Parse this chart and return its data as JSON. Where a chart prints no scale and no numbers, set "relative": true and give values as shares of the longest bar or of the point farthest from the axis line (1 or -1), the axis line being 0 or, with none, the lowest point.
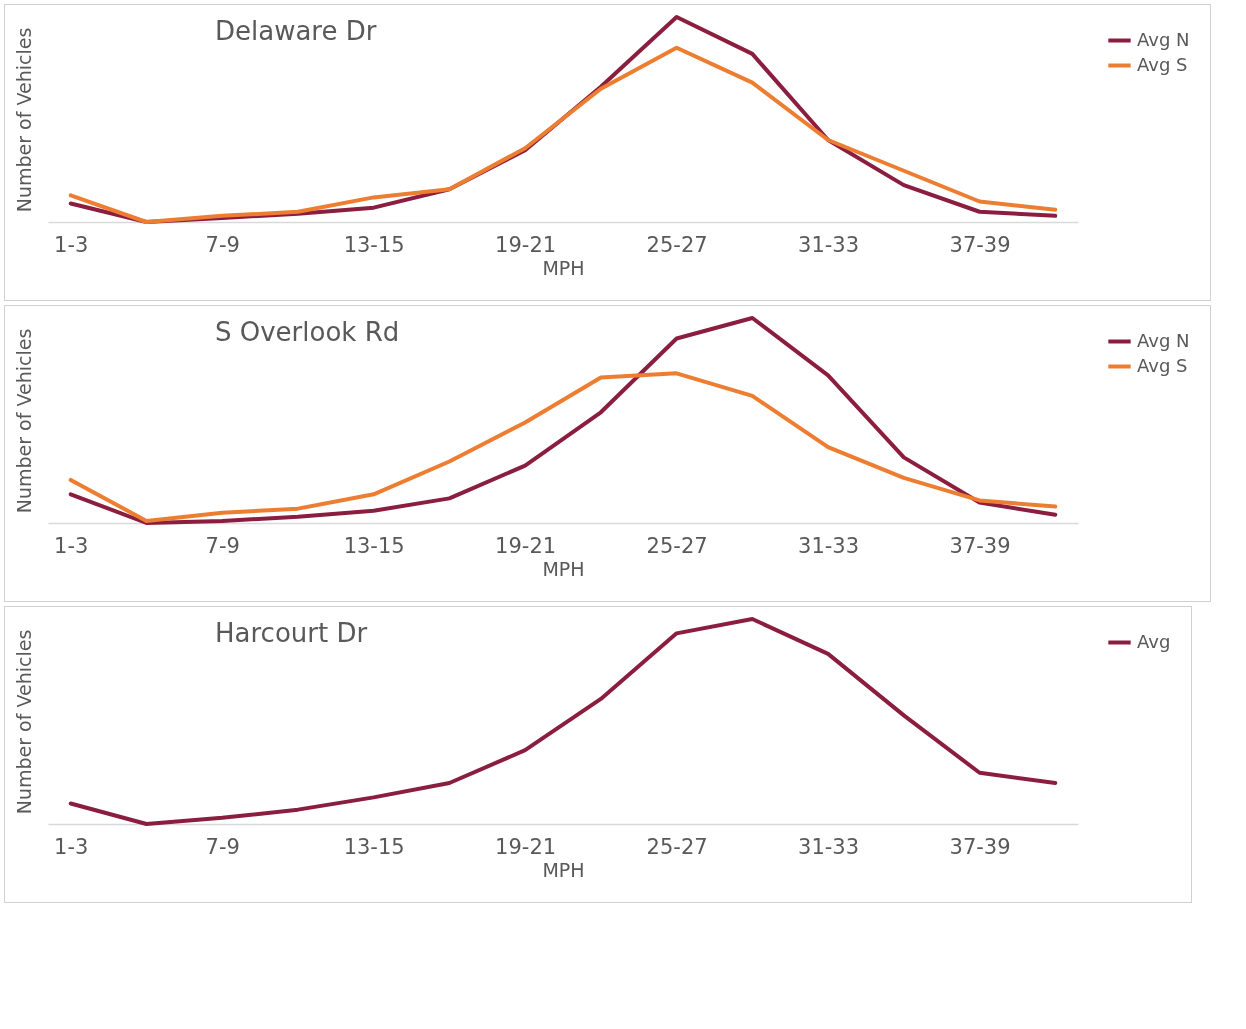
{
  "chart_data": [
    {
      "type": "line",
      "title": "Delaware Dr",
      "xlabel": "MPH",
      "ylabel": "Number of Vehicles",
      "relative": true,
      "legend": "right",
      "grid": false,
      "marker": "none",
      "line_style": "solid",
      "categories": [
        "1-3",
        null,
        "7-9",
        null,
        "13-15",
        null,
        "19-21",
        null,
        "25-27",
        null,
        "31-33",
        null,
        "37-39",
        null
      ],
      "series": [
        {
          "name": "Avg N",
          "color": "#8b1e3f",
          "values": [
            0.09,
            0,
            0.02,
            0.04,
            0.07,
            0.16,
            0.35,
            0.66,
            1,
            0.82,
            0.4,
            0.18,
            0.05,
            0.03
          ]
        },
        {
          "name": "Avg S",
          "color": "#ed7d31",
          "values": [
            0.13,
            0,
            0.03,
            0.05,
            0.12,
            0.16,
            0.36,
            0.65,
            0.85,
            0.68,
            0.4,
            0.25,
            0.1,
            0.06
          ]
        }
      ]
    },
    {
      "type": "line",
      "title": "S Overlook Rd",
      "xlabel": "MPH",
      "ylabel": "Number of Vehicles",
      "relative": true,
      "legend": "right",
      "grid": false,
      "marker": "none",
      "line_style": "solid",
      "categories": [
        "1-3",
        null,
        "7-9",
        null,
        "13-15",
        null,
        "19-21",
        null,
        "25-27",
        null,
        "31-33",
        null,
        "37-39",
        null
      ],
      "series": [
        {
          "name": "Avg N",
          "color": "#8b1e3f",
          "values": [
            0.14,
            0,
            0.01,
            0.03,
            0.06,
            0.12,
            0.28,
            0.54,
            0.9,
            1,
            0.72,
            0.32,
            0.1,
            0.04
          ]
        },
        {
          "name": "Avg S",
          "color": "#ed7d31",
          "values": [
            0.21,
            0.01,
            0.05,
            0.07,
            0.14,
            0.3,
            0.49,
            0.71,
            0.73,
            0.62,
            0.37,
            0.22,
            0.11,
            0.08
          ]
        }
      ]
    },
    {
      "type": "line",
      "title": "Harcourt Dr",
      "xlabel": "MPH",
      "ylabel": "Number of Vehicles",
      "relative": true,
      "legend": "right",
      "grid": false,
      "marker": "none",
      "line_style": "solid",
      "categories": [
        "1-3",
        null,
        "7-9",
        null,
        "13-15",
        null,
        "19-21",
        null,
        "25-27",
        null,
        "31-33",
        null,
        "37-39",
        null
      ],
      "series": [
        {
          "name": "Avg",
          "color": "#8b1e3f",
          "values": [
            0.1,
            0,
            0.03,
            0.07,
            0.13,
            0.2,
            0.36,
            0.61,
            0.93,
            1,
            0.83,
            0.53,
            0.25,
            0.2
          ]
        }
      ]
    }
  ]
}
